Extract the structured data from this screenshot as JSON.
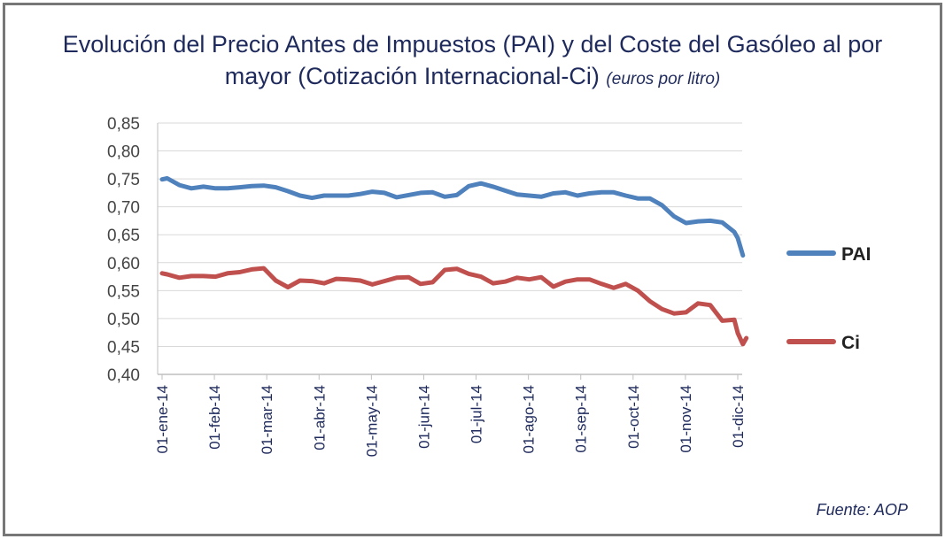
{
  "title": {
    "line1": "Evolución del Precio Antes de Impuestos (PAI) y del Coste del Gasóleo al por",
    "line2": "mayor (Cotización Internacional-Ci)",
    "units": "(euros por litro)"
  },
  "source": "Fuente: AOP",
  "chart_data": {
    "type": "line",
    "title": "Evolución del Precio Antes de Impuestos (PAI) y del Coste del Gasóleo al por mayor (Cotización Internacional-Ci) (euros por litro)",
    "xlabel": "",
    "ylabel": "",
    "ylim": [
      0.4,
      0.85
    ],
    "y_ticks": [
      "0,40",
      "0,45",
      "0,50",
      "0,55",
      "0,60",
      "0,65",
      "0,70",
      "0,75",
      "0,80",
      "0,85"
    ],
    "x_ticks": [
      "01-ene-14",
      "01-feb-14",
      "01-mar-14",
      "01-abr-14",
      "01-may-14",
      "01-jun-14",
      "01-jul-14",
      "01-ago-14",
      "01-sep-14",
      "01-oct-14",
      "01-nov-14",
      "01-dic-14"
    ],
    "x_range": [
      "2014-01-01",
      "2014-12-01"
    ],
    "grid": true,
    "legend_position": "right",
    "series": [
      {
        "name": "PAI",
        "color": "#4f81bd",
        "points": [
          [
            "2014-01-01",
            0.749
          ],
          [
            "2014-01-04",
            0.751
          ],
          [
            "2014-01-11",
            0.739
          ],
          [
            "2014-01-18",
            0.733
          ],
          [
            "2014-01-25",
            0.736
          ],
          [
            "2014-02-01",
            0.733
          ],
          [
            "2014-02-08",
            0.733
          ],
          [
            "2014-02-15",
            0.735
          ],
          [
            "2014-02-22",
            0.737
          ],
          [
            "2014-03-01",
            0.738
          ],
          [
            "2014-03-08",
            0.735
          ],
          [
            "2014-03-15",
            0.728
          ],
          [
            "2014-03-22",
            0.72
          ],
          [
            "2014-03-29",
            0.716
          ],
          [
            "2014-04-05",
            0.72
          ],
          [
            "2014-04-12",
            0.72
          ],
          [
            "2014-04-19",
            0.72
          ],
          [
            "2014-04-26",
            0.723
          ],
          [
            "2014-05-03",
            0.727
          ],
          [
            "2014-05-10",
            0.725
          ],
          [
            "2014-05-17",
            0.717
          ],
          [
            "2014-05-24",
            0.721
          ],
          [
            "2014-05-31",
            0.725
          ],
          [
            "2014-06-07",
            0.726
          ],
          [
            "2014-06-14",
            0.718
          ],
          [
            "2014-06-21",
            0.721
          ],
          [
            "2014-06-28",
            0.737
          ],
          [
            "2014-07-05",
            0.742
          ],
          [
            "2014-07-12",
            0.736
          ],
          [
            "2014-07-19",
            0.729
          ],
          [
            "2014-07-26",
            0.722
          ],
          [
            "2014-08-02",
            0.72
          ],
          [
            "2014-08-09",
            0.718
          ],
          [
            "2014-08-16",
            0.724
          ],
          [
            "2014-08-23",
            0.726
          ],
          [
            "2014-08-30",
            0.72
          ],
          [
            "2014-09-06",
            0.724
          ],
          [
            "2014-09-13",
            0.726
          ],
          [
            "2014-09-20",
            0.726
          ],
          [
            "2014-09-27",
            0.72
          ],
          [
            "2014-10-04",
            0.715
          ],
          [
            "2014-10-11",
            0.715
          ],
          [
            "2014-10-18",
            0.703
          ],
          [
            "2014-10-25",
            0.683
          ],
          [
            "2014-11-01",
            0.671
          ],
          [
            "2014-11-08",
            0.674
          ],
          [
            "2014-11-15",
            0.675
          ],
          [
            "2014-11-22",
            0.672
          ],
          [
            "2014-11-29",
            0.655
          ],
          [
            "2014-12-01",
            0.644
          ],
          [
            "2014-12-04",
            0.613
          ]
        ]
      },
      {
        "name": "Ci",
        "color": "#c0504d",
        "points": [
          [
            "2014-01-01",
            0.581
          ],
          [
            "2014-01-04",
            0.579
          ],
          [
            "2014-01-11",
            0.573
          ],
          [
            "2014-01-18",
            0.576
          ],
          [
            "2014-01-25",
            0.576
          ],
          [
            "2014-02-01",
            0.575
          ],
          [
            "2014-02-08",
            0.581
          ],
          [
            "2014-02-15",
            0.583
          ],
          [
            "2014-02-22",
            0.588
          ],
          [
            "2014-03-01",
            0.59
          ],
          [
            "2014-03-08",
            0.568
          ],
          [
            "2014-03-15",
            0.556
          ],
          [
            "2014-03-22",
            0.568
          ],
          [
            "2014-03-29",
            0.567
          ],
          [
            "2014-04-05",
            0.563
          ],
          [
            "2014-04-12",
            0.571
          ],
          [
            "2014-04-19",
            0.57
          ],
          [
            "2014-04-26",
            0.568
          ],
          [
            "2014-05-03",
            0.561
          ],
          [
            "2014-05-10",
            0.567
          ],
          [
            "2014-05-17",
            0.573
          ],
          [
            "2014-05-24",
            0.574
          ],
          [
            "2014-05-31",
            0.562
          ],
          [
            "2014-06-07",
            0.565
          ],
          [
            "2014-06-14",
            0.587
          ],
          [
            "2014-06-21",
            0.589
          ],
          [
            "2014-06-28",
            0.58
          ],
          [
            "2014-07-05",
            0.575
          ],
          [
            "2014-07-12",
            0.563
          ],
          [
            "2014-07-19",
            0.566
          ],
          [
            "2014-07-26",
            0.573
          ],
          [
            "2014-08-02",
            0.57
          ],
          [
            "2014-08-09",
            0.574
          ],
          [
            "2014-08-16",
            0.557
          ],
          [
            "2014-08-23",
            0.566
          ],
          [
            "2014-08-30",
            0.57
          ],
          [
            "2014-09-06",
            0.57
          ],
          [
            "2014-09-13",
            0.562
          ],
          [
            "2014-09-20",
            0.555
          ],
          [
            "2014-09-27",
            0.562
          ],
          [
            "2014-10-04",
            0.55
          ],
          [
            "2014-10-11",
            0.531
          ],
          [
            "2014-10-18",
            0.517
          ],
          [
            "2014-10-25",
            0.509
          ],
          [
            "2014-11-01",
            0.511
          ],
          [
            "2014-11-08",
            0.527
          ],
          [
            "2014-11-15",
            0.524
          ],
          [
            "2014-11-22",
            0.496
          ],
          [
            "2014-11-29",
            0.498
          ],
          [
            "2014-12-01",
            0.474
          ],
          [
            "2014-12-04",
            0.454
          ],
          [
            "2014-12-06",
            0.465
          ]
        ]
      }
    ]
  }
}
